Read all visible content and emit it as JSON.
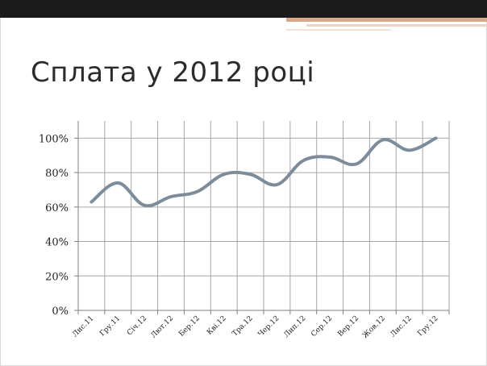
{
  "title": "Сплата у 2012 році",
  "colors": {
    "top_band": "#1a1a1a",
    "accent": "#d9a88a",
    "series_line": "#7d8c9a",
    "grid": "#a6a6a6"
  },
  "chart_data": {
    "type": "line",
    "title": "Сплата у 2012 році",
    "xlabel": "",
    "ylabel": "",
    "categories": [
      "Лис.11",
      "Гру.11",
      "Січ.12",
      "Лют.12",
      "Бер.12",
      "Кві.12",
      "Тра.12",
      "Чер.12",
      "Лип.12",
      "Сер.12",
      "Вер.12",
      "Жов.12",
      "Лис.12",
      "Гру.12"
    ],
    "series": [
      {
        "values": [
          63,
          74,
          61,
          66,
          69,
          79,
          79,
          73,
          87,
          89,
          85,
          99,
          93,
          100
        ]
      }
    ],
    "y_ticks": [
      "0%",
      "20%",
      "40%",
      "60%",
      "80%",
      "100%"
    ],
    "ylim": [
      0,
      110
    ],
    "grid": true,
    "legend": "none"
  }
}
